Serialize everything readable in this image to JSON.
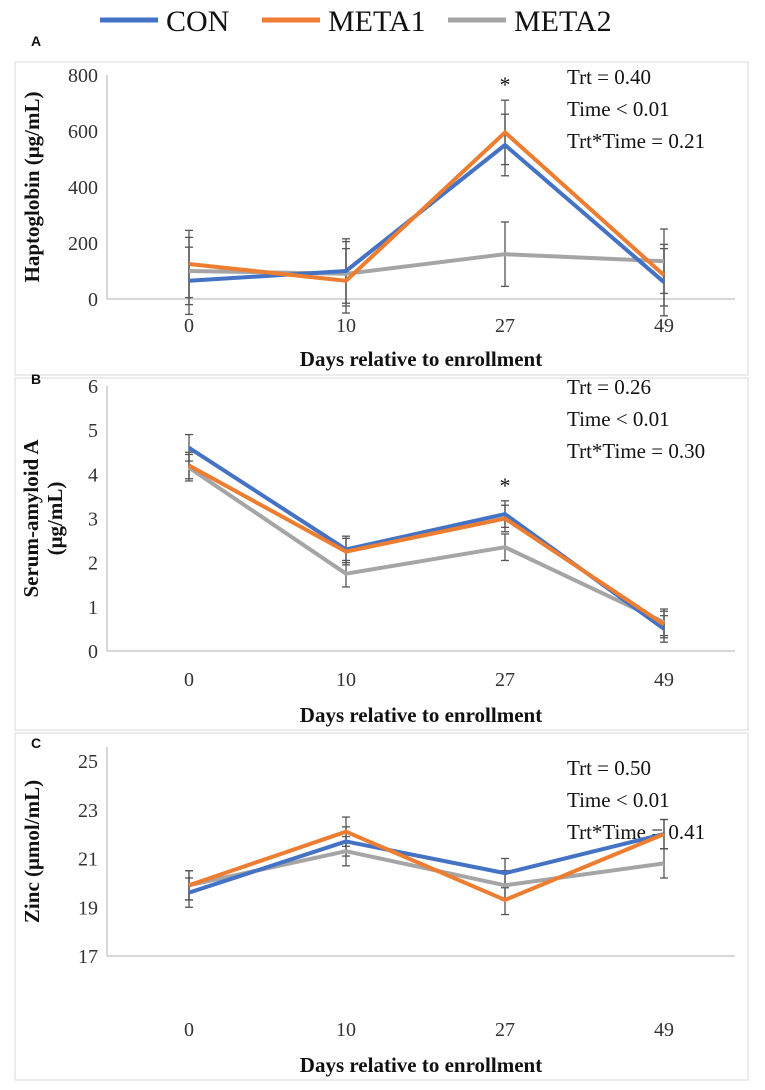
{
  "legend": [
    {
      "name": "CON",
      "color": "#4472C4"
    },
    {
      "name": "META1",
      "color": "#ED7D31"
    },
    {
      "name": "META2",
      "color": "#A5A5A5"
    }
  ],
  "chart_data": [
    {
      "type": "line",
      "panel": "A",
      "ylabel": "Haptoglobin (μg/mL)",
      "xlabel": "Days relative to enrollment",
      "categories": [
        "0",
        "10",
        "27",
        "49"
      ],
      "ylim": [
        0,
        800
      ],
      "yticks": [
        0,
        200,
        400,
        600,
        800
      ],
      "stats": [
        "Trt = 0.40",
        "Time < 0.01",
        "Trt*Time = 0.21"
      ],
      "significance": [
        {
          "index": 2,
          "label": "*"
        }
      ],
      "series": [
        {
          "name": "CON",
          "values": [
            65,
            100,
            550,
            60
          ],
          "errors": [
            120,
            115,
            110,
            120
          ]
        },
        {
          "name": "META1",
          "values": [
            125,
            65,
            595,
            85
          ],
          "errors": [
            120,
            115,
            115,
            110
          ]
        },
        {
          "name": "META2",
          "values": [
            100,
            90,
            160,
            135
          ],
          "errors": [
            120,
            115,
            115,
            115
          ]
        }
      ]
    },
    {
      "type": "line",
      "panel": "B",
      "ylabel": "Serum-amyloid A (μg/mL)",
      "xlabel": "Days relative to enrollment",
      "categories": [
        "0",
        "10",
        "27",
        "49"
      ],
      "ylim": [
        0,
        6
      ],
      "yticks": [
        0,
        1,
        2,
        3,
        4,
        5,
        6
      ],
      "stats": [
        "Trt = 0.26",
        "Time < 0.01",
        "Trt*Time = 0.30"
      ],
      "significance": [
        {
          "index": 2,
          "label": "*"
        }
      ],
      "series": [
        {
          "name": "CON",
          "values": [
            4.6,
            2.3,
            3.1,
            0.5
          ],
          "errors": [
            0.3,
            0.3,
            0.3,
            0.3
          ]
        },
        {
          "name": "META1",
          "values": [
            4.2,
            2.25,
            3.0,
            0.6
          ],
          "errors": [
            0.3,
            0.3,
            0.3,
            0.3
          ]
        },
        {
          "name": "META2",
          "values": [
            4.15,
            1.75,
            2.35,
            0.65
          ],
          "errors": [
            0.3,
            0.3,
            0.3,
            0.3
          ]
        }
      ]
    },
    {
      "type": "line",
      "panel": "C",
      "ylabel": "Zinc (μmol/mL)",
      "xlabel": "Days relative to enrollment",
      "categories": [
        "0",
        "10",
        "27",
        "49"
      ],
      "ylim": [
        17,
        26
      ],
      "yticks": [
        17,
        19,
        21,
        23,
        25
      ],
      "stats": [
        "Trt = 0.50",
        "Time < 0.01",
        "Trt*Time = 0.41"
      ],
      "significance": [],
      "series": [
        {
          "name": "CON",
          "values": [
            19.6,
            21.7,
            20.4,
            22.0
          ],
          "errors": [
            0.6,
            0.6,
            0.6,
            0.6
          ]
        },
        {
          "name": "META1",
          "values": [
            19.9,
            22.1,
            19.3,
            22.0
          ],
          "errors": [
            0.6,
            0.6,
            0.6,
            0.6
          ]
        },
        {
          "name": "META2",
          "values": [
            19.9,
            21.3,
            19.9,
            20.8
          ],
          "errors": [
            0.6,
            0.6,
            0.6,
            0.6
          ]
        }
      ]
    }
  ]
}
